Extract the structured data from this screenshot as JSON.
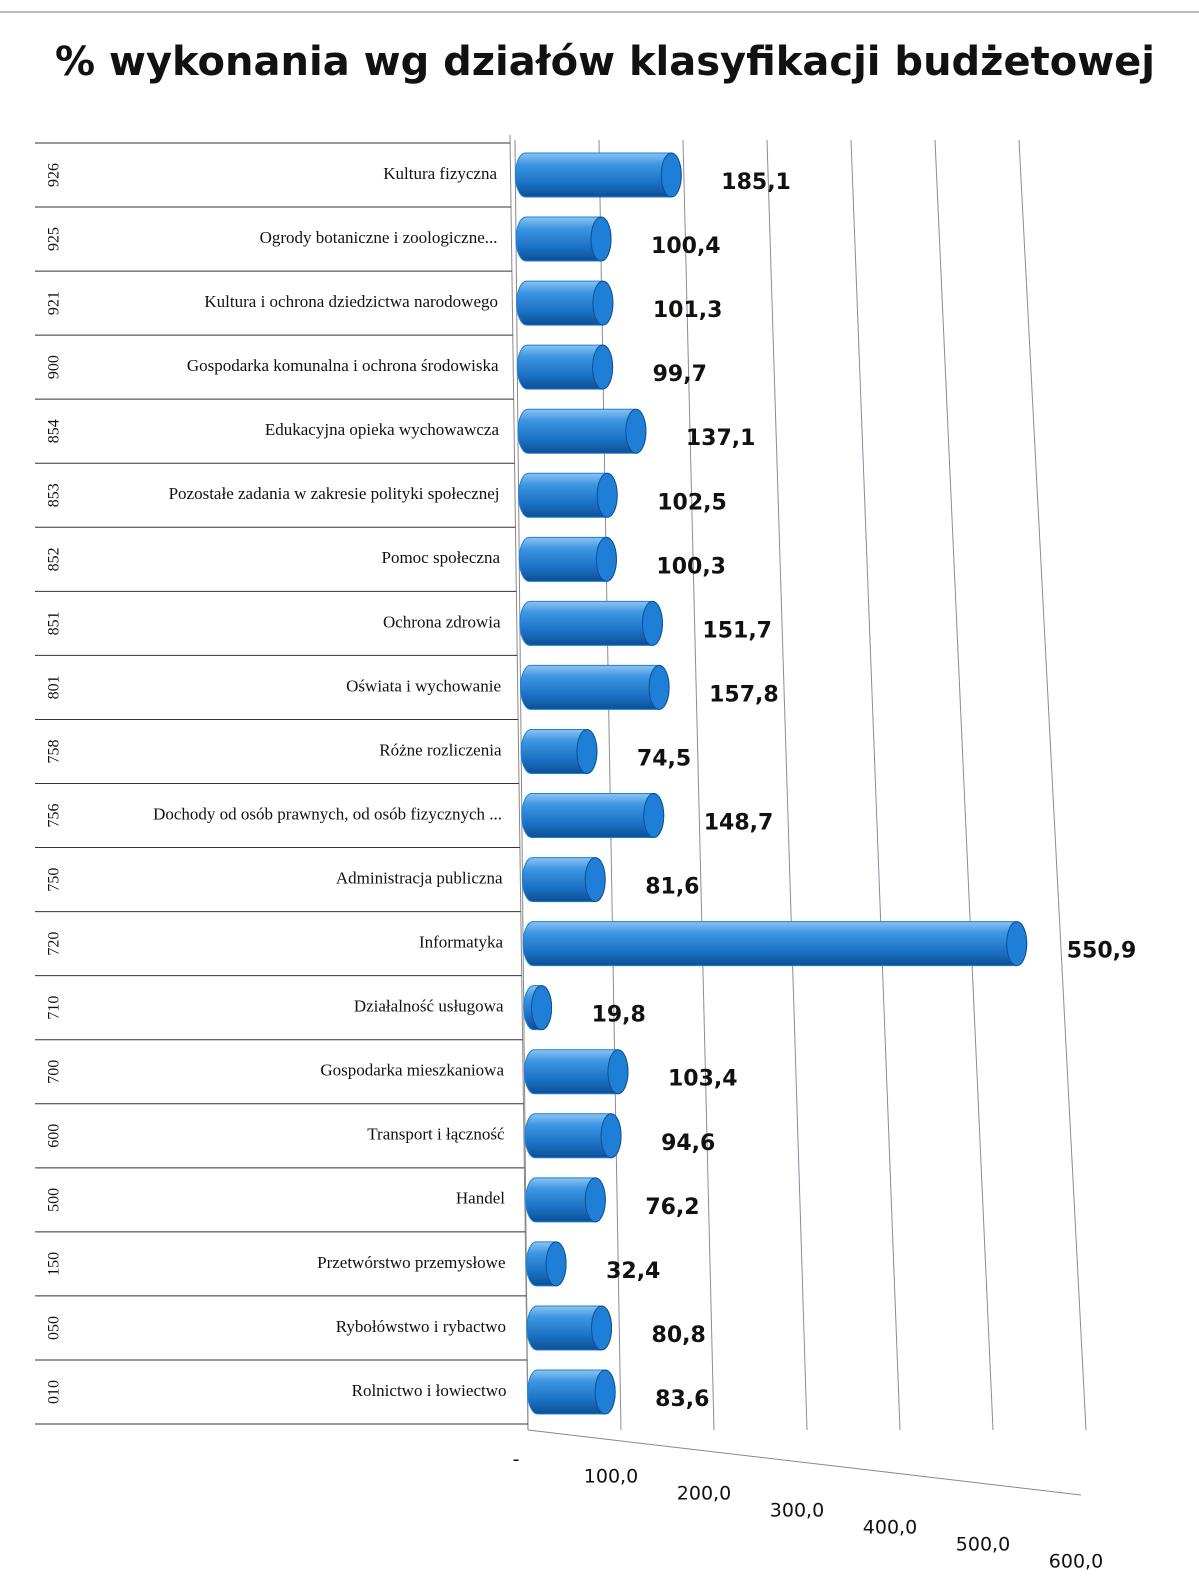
{
  "chart_data": {
    "type": "bar",
    "orientation": "horizontal",
    "title": "% wykonania wg działów klasyfikacji budżetowej",
    "codes": [
      "926",
      "925",
      "921",
      "900",
      "854",
      "853",
      "852",
      "851",
      "801",
      "758",
      "756",
      "750",
      "720",
      "710",
      "700",
      "600",
      "500",
      "150",
      "050",
      "010"
    ],
    "categories": [
      "Kultura fizyczna",
      "Ogrody botaniczne i zoologiczne...",
      "Kultura i ochrona dziedzictwa narodowego",
      "Gospodarka komunalna i ochrona środowiska",
      "Edukacyjna opieka wychowawcza",
      "Pozostałe zadania w zakresie polityki społecznej",
      "Pomoc społeczna",
      "Ochrona zdrowia",
      "Oświata i wychowanie",
      "Różne rozliczenia",
      "Dochody od osób prawnych, od osób fizycznych ...",
      "Administracja publiczna",
      "Informatyka",
      "Działalność usługowa",
      "Gospodarka mieszkaniowa",
      "Transport i łączność",
      "Handel",
      "Przetwórstwo przemysłowe",
      "Rybołówstwo i rybactwo",
      "Rolnictwo i łowiectwo"
    ],
    "values": [
      185.1,
      100.4,
      101.3,
      99.7,
      137.1,
      102.5,
      100.3,
      151.7,
      157.8,
      74.5,
      148.7,
      81.6,
      550.9,
      19.8,
      103.4,
      94.6,
      76.2,
      32.4,
      80.8,
      83.6
    ],
    "value_labels": [
      "185,1",
      "100,4",
      "101,3",
      "99,7",
      "137,1",
      "102,5",
      "100,3",
      "151,7",
      "157,8",
      "74,5",
      "148,7",
      "81,6",
      "550,9",
      "19,8",
      "103,4",
      "94,6",
      "76,2",
      "32,4",
      "80,8",
      "83,6"
    ],
    "color": "#1f7fd6",
    "xlim": [
      0,
      600
    ],
    "xticks": [
      {
        "value": 0,
        "label": "-"
      },
      {
        "value": 100,
        "label": "100,0"
      },
      {
        "value": 200,
        "label": "200,0"
      },
      {
        "value": 300,
        "label": "300,0"
      },
      {
        "value": 400,
        "label": "400,0"
      },
      {
        "value": 500,
        "label": "500,0"
      },
      {
        "value": 600,
        "label": "600,0"
      }
    ],
    "grid": true
  }
}
